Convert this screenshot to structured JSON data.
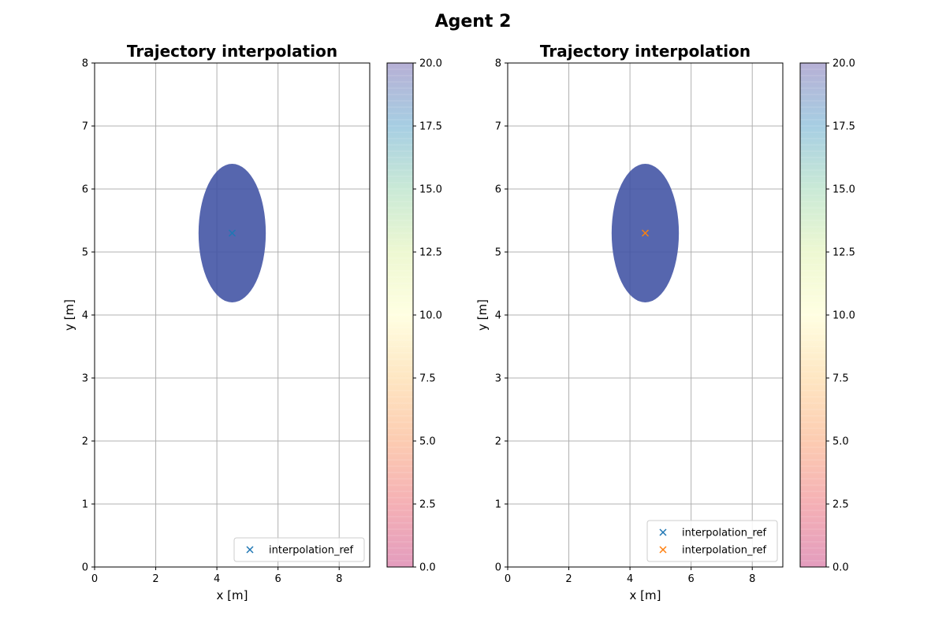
{
  "figure": {
    "title": "Agent 2"
  },
  "colors": {
    "circle": "#3f51a3",
    "series_1": "#1f77b4",
    "series_2": "#ff7f0e"
  },
  "chart_data": [
    {
      "type": "scatter",
      "title": "Trajectory interpolation",
      "xlabel": "x [m]",
      "ylabel": "y [m]",
      "xlim": [
        0,
        9
      ],
      "ylim": [
        0,
        8
      ],
      "xticks": [
        "0",
        "2",
        "4",
        "6",
        "8"
      ],
      "yticks": [
        "0",
        "1",
        "2",
        "3",
        "4",
        "5",
        "6",
        "7",
        "8"
      ],
      "grid": true,
      "legend_position": "lower-right",
      "agent_circle": {
        "center": [
          4.5,
          5.3
        ],
        "radius": 1.1
      },
      "series": [
        {
          "name": "interpolation_ref",
          "marker": "x",
          "color": "#1f77b4",
          "points": [
            [
              4.5,
              5.3
            ]
          ]
        }
      ],
      "colorbar": {
        "range": [
          0,
          20
        ],
        "ticks": [
          "0.0",
          "2.5",
          "5.0",
          "7.5",
          "10.0",
          "12.5",
          "15.0",
          "17.5",
          "20.0"
        ],
        "colormap": "Spectral"
      }
    },
    {
      "type": "scatter",
      "title": "Trajectory interpolation",
      "xlabel": "x [m]",
      "ylabel": "y [m]",
      "xlim": [
        0,
        9
      ],
      "ylim": [
        0,
        8
      ],
      "xticks": [
        "0",
        "2",
        "4",
        "6",
        "8"
      ],
      "yticks": [
        "0",
        "1",
        "2",
        "3",
        "4",
        "5",
        "6",
        "7",
        "8"
      ],
      "grid": true,
      "legend_position": "lower-right",
      "agent_circle": {
        "center": [
          4.5,
          5.3
        ],
        "radius": 1.1
      },
      "series": [
        {
          "name": "interpolation_ref",
          "marker": "x",
          "color": "#1f77b4",
          "points": [
            [
              4.5,
              5.3
            ]
          ]
        },
        {
          "name": "interpolation_ref",
          "marker": "x",
          "color": "#ff7f0e",
          "points": [
            [
              4.5,
              5.3
            ]
          ]
        }
      ],
      "colorbar": {
        "range": [
          0,
          20
        ],
        "ticks": [
          "0.0",
          "2.5",
          "5.0",
          "7.5",
          "10.0",
          "12.5",
          "15.0",
          "17.5",
          "20.0"
        ],
        "colormap": "Spectral"
      }
    }
  ]
}
